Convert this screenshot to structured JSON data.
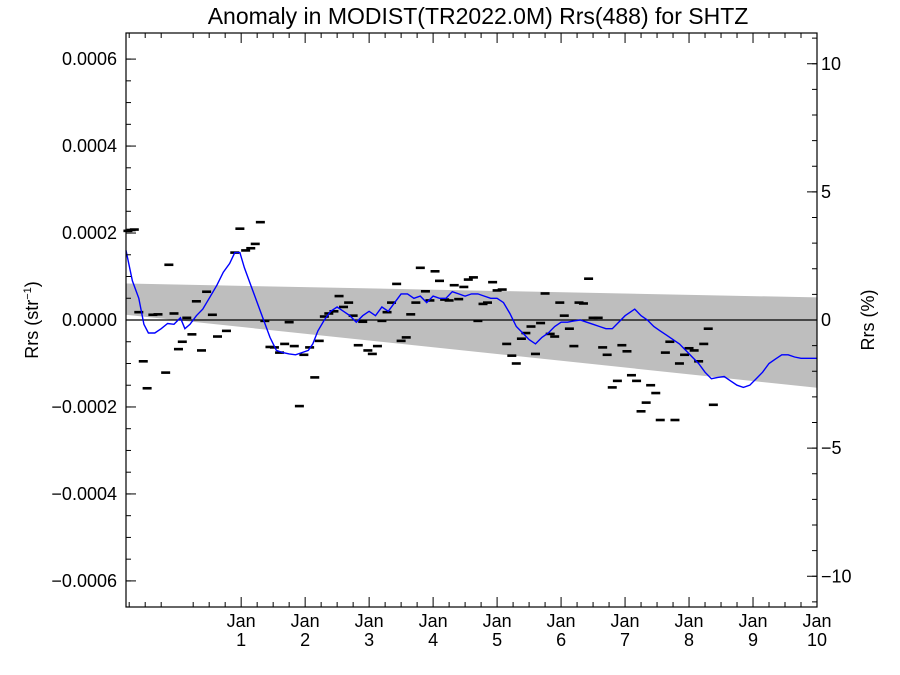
{
  "chart_data": {
    "type": "scatter",
    "title": "Anomaly in MODIST(TR2022.0M) Rrs(488) for SHTZ",
    "ylabel_left": {
      "text": "Rrs (str",
      "sup": "−1",
      "close": ")"
    },
    "ylabel_right": "Rrs (%)",
    "ylim_left": [
      -0.00066,
      0.00066
    ],
    "ylim_right": [
      -11.2,
      11.2
    ],
    "left_ticks": [
      {
        "value": 0.0006,
        "label": "0.0006"
      },
      {
        "value": 0.0004,
        "label": "0.0004"
      },
      {
        "value": 0.0002,
        "label": "0.0002"
      },
      {
        "value": 0.0,
        "label": "0.0000"
      },
      {
        "value": -0.0002,
        "label": "−0.0002"
      },
      {
        "value": -0.0004,
        "label": "−0.0004"
      },
      {
        "value": -0.0006,
        "label": "−0.0006"
      }
    ],
    "right_ticks": [
      {
        "value": 10,
        "label": "10"
      },
      {
        "value": 5,
        "label": "5"
      },
      {
        "value": 0,
        "label": "0"
      },
      {
        "value": -5,
        "label": "−5"
      },
      {
        "value": -10,
        "label": "−10"
      }
    ],
    "xlim": [
      -0.8,
      10.0
    ],
    "x_ticks": [
      {
        "value": 1,
        "top": "Jan",
        "bottom": "1"
      },
      {
        "value": 2,
        "top": "Jan",
        "bottom": "2"
      },
      {
        "value": 3,
        "top": "Jan",
        "bottom": "3"
      },
      {
        "value": 4,
        "top": "Jan",
        "bottom": "4"
      },
      {
        "value": 5,
        "top": "Jan",
        "bottom": "5"
      },
      {
        "value": 6,
        "top": "Jan",
        "bottom": "6"
      },
      {
        "value": 7,
        "top": "Jan",
        "bottom": "7"
      },
      {
        "value": 8,
        "top": "Jan",
        "bottom": "8"
      },
      {
        "value": 9,
        "top": "Jan",
        "bottom": "9"
      },
      {
        "value": 10,
        "top": "Jan",
        "bottom": "10"
      }
    ],
    "zero_line": 0,
    "band": {
      "color": "#bebebe",
      "upper": [
        [
          -0.8,
          8.4e-05
        ],
        [
          10.0,
          5.2e-05
        ]
      ],
      "lower": [
        [
          -0.8,
          1.2e-05
        ],
        [
          10.0,
          -0.000156
        ]
      ]
    },
    "points": {
      "color": "#000000",
      "marker": "dash",
      "values": [
        [
          -0.77,
          0.000205
        ],
        [
          -0.72,
          0.000207
        ],
        [
          -0.67,
          0.000208
        ],
        [
          -0.6,
          1.8e-05
        ],
        [
          -0.53,
          -9.5e-05
        ],
        [
          -0.47,
          -0.000157
        ],
        [
          -0.38,
          1.2e-05
        ],
        [
          -0.3,
          1.3e-05
        ],
        [
          -0.18,
          -0.000121
        ],
        [
          -0.13,
          0.000127
        ],
        [
          -0.05,
          1.5e-05
        ],
        [
          0.02,
          -6.7e-05
        ],
        [
          0.08,
          -5e-05
        ],
        [
          0.15,
          5e-06
        ],
        [
          0.23,
          -3.3e-05
        ],
        [
          0.3,
          4.3e-05
        ],
        [
          0.38,
          -7e-05
        ],
        [
          0.46,
          6.5e-05
        ],
        [
          0.55,
          1.2e-05
        ],
        [
          0.63,
          -3.8e-05
        ],
        [
          0.77,
          -2.5e-05
        ],
        [
          0.9,
          0.000155
        ],
        [
          0.98,
          0.00021
        ],
        [
          1.07,
          0.00016
        ],
        [
          1.15,
          0.000165
        ],
        [
          1.22,
          0.000175
        ],
        [
          1.3,
          0.000225
        ],
        [
          1.37,
          -2e-06
        ],
        [
          1.45,
          -6.2e-05
        ],
        [
          1.52,
          -6.3e-05
        ],
        [
          1.6,
          -7.5e-05
        ],
        [
          1.68,
          -5.5e-05
        ],
        [
          1.75,
          -5e-06
        ],
        [
          1.83,
          -6e-05
        ],
        [
          1.91,
          -0.000198
        ],
        [
          1.98,
          -8e-05
        ],
        [
          2.07,
          -6.3e-05
        ],
        [
          2.15,
          -0.000132
        ],
        [
          2.22,
          -4.8e-05
        ],
        [
          2.3,
          8e-06
        ],
        [
          2.37,
          1.5e-05
        ],
        [
          2.45,
          2e-05
        ],
        [
          2.53,
          5.5e-05
        ],
        [
          2.6,
          3e-05
        ],
        [
          2.68,
          4e-05
        ],
        [
          2.75,
          1e-05
        ],
        [
          2.83,
          -5.8e-05
        ],
        [
          2.9,
          -4e-06
        ],
        [
          2.98,
          -7e-05
        ],
        [
          3.05,
          -7.8e-05
        ],
        [
          3.13,
          -6e-05
        ],
        [
          3.2,
          -2e-06
        ],
        [
          3.28,
          1.8e-05
        ],
        [
          3.35,
          4e-05
        ],
        [
          3.43,
          8.3e-05
        ],
        [
          3.5,
          -4.8e-05
        ],
        [
          3.58,
          -4e-05
        ],
        [
          3.65,
          1.3e-05
        ],
        [
          3.73,
          4e-05
        ],
        [
          3.8,
          0.00012
        ],
        [
          3.88,
          6.6e-05
        ],
        [
          3.95,
          4.5e-05
        ],
        [
          4.03,
          0.000112
        ],
        [
          4.1,
          9e-05
        ],
        [
          4.18,
          4.7e-05
        ],
        [
          4.25,
          4.5e-05
        ],
        [
          4.33,
          8e-05
        ],
        [
          4.4,
          4.8e-05
        ],
        [
          4.48,
          7.6e-05
        ],
        [
          4.55,
          9.3e-05
        ],
        [
          4.63,
          9.8e-05
        ],
        [
          4.7,
          -2e-06
        ],
        [
          4.78,
          3.7e-05
        ],
        [
          4.85,
          4e-05
        ],
        [
          4.93,
          8.7e-05
        ],
        [
          5.0,
          6.8e-05
        ],
        [
          5.08,
          7e-05
        ],
        [
          5.15,
          -5.5e-05
        ],
        [
          5.23,
          -8.2e-05
        ],
        [
          5.3,
          -0.0001
        ],
        [
          5.38,
          -4.3e-05
        ],
        [
          5.45,
          -3e-05
        ],
        [
          5.53,
          -1.5e-05
        ],
        [
          5.6,
          -7.8e-05
        ],
        [
          5.68,
          -7e-06
        ],
        [
          5.75,
          6.1e-05
        ],
        [
          5.83,
          -3.2e-05
        ],
        [
          5.9,
          -3.8e-05
        ],
        [
          5.98,
          4e-05
        ],
        [
          6.05,
          1e-05
        ],
        [
          6.13,
          -2e-05
        ],
        [
          6.2,
          -6e-05
        ],
        [
          6.28,
          4e-05
        ],
        [
          6.35,
          3.8e-05
        ],
        [
          6.43,
          9.5e-05
        ],
        [
          6.5,
          5e-06
        ],
        [
          6.58,
          5e-06
        ],
        [
          6.65,
          -6.3e-05
        ],
        [
          6.72,
          -8e-05
        ],
        [
          6.8,
          -0.000155
        ],
        [
          6.88,
          -0.00014
        ],
        [
          6.95,
          -5.8e-05
        ],
        [
          7.03,
          -7.2e-05
        ],
        [
          7.1,
          -0.000127
        ],
        [
          7.18,
          -0.00014
        ],
        [
          7.25,
          -0.00021
        ],
        [
          7.33,
          -0.00019
        ],
        [
          7.4,
          -0.00015
        ],
        [
          7.48,
          -0.000168
        ],
        [
          7.55,
          -0.00023
        ],
        [
          7.63,
          -7.5e-05
        ],
        [
          7.7,
          -5e-05
        ],
        [
          7.78,
          -0.00023
        ],
        [
          7.85,
          -0.0001
        ],
        [
          7.93,
          -8e-05
        ],
        [
          8.0,
          -6.5e-05
        ],
        [
          8.08,
          -7e-05
        ],
        [
          8.15,
          -9.5e-05
        ],
        [
          8.23,
          -5.5e-05
        ],
        [
          8.3,
          -2e-05
        ],
        [
          8.38,
          -0.000195
        ]
      ]
    },
    "line": {
      "color": "#0000ff",
      "values": [
        [
          -0.8,
          0.00016
        ],
        [
          -0.7,
          9e-05
        ],
        [
          -0.6,
          5e-05
        ],
        [
          -0.52,
          -1e-05
        ],
        [
          -0.45,
          -3e-05
        ],
        [
          -0.35,
          -3e-05
        ],
        [
          -0.25,
          -2e-05
        ],
        [
          -0.15,
          -8e-06
        ],
        [
          -0.05,
          -1e-05
        ],
        [
          0.05,
          5e-06
        ],
        [
          0.12,
          -2e-05
        ],
        [
          0.2,
          -1e-05
        ],
        [
          0.3,
          1e-05
        ],
        [
          0.4,
          2.5e-05
        ],
        [
          0.5,
          5e-05
        ],
        [
          0.62,
          8e-05
        ],
        [
          0.72,
          0.00011
        ],
        [
          0.82,
          0.00013
        ],
        [
          0.9,
          0.000155
        ],
        [
          0.98,
          0.000155
        ],
        [
          1.05,
          0.00012
        ],
        [
          1.15,
          8e-05
        ],
        [
          1.25,
          4e-05
        ],
        [
          1.35,
          0.0
        ],
        [
          1.45,
          -4e-05
        ],
        [
          1.55,
          -7e-05
        ],
        [
          1.65,
          -7.5e-05
        ],
        [
          1.75,
          -7.8e-05
        ],
        [
          1.85,
          -8e-05
        ],
        [
          1.95,
          -7.5e-05
        ],
        [
          2.05,
          -7e-05
        ],
        [
          2.12,
          -5.5e-05
        ],
        [
          2.2,
          -2.5e-05
        ],
        [
          2.3,
          0.0
        ],
        [
          2.4,
          2e-05
        ],
        [
          2.5,
          3e-05
        ],
        [
          2.6,
          2e-05
        ],
        [
          2.7,
          1e-05
        ],
        [
          2.8,
          -5e-06
        ],
        [
          2.9,
          1e-05
        ],
        [
          3.0,
          2e-05
        ],
        [
          3.1,
          1e-05
        ],
        [
          3.2,
          3e-05
        ],
        [
          3.3,
          2e-05
        ],
        [
          3.4,
          4e-05
        ],
        [
          3.5,
          6e-05
        ],
        [
          3.6,
          6e-05
        ],
        [
          3.7,
          5e-05
        ],
        [
          3.8,
          5.5e-05
        ],
        [
          3.9,
          4e-05
        ],
        [
          4.0,
          5.5e-05
        ],
        [
          4.1,
          5e-05
        ],
        [
          4.2,
          5e-05
        ],
        [
          4.3,
          6.5e-05
        ],
        [
          4.4,
          6e-05
        ],
        [
          4.5,
          5.5e-05
        ],
        [
          4.6,
          6e-05
        ],
        [
          4.7,
          6e-05
        ],
        [
          4.8,
          5.5e-05
        ],
        [
          4.9,
          5e-05
        ],
        [
          5.0,
          5e-05
        ],
        [
          5.1,
          4e-05
        ],
        [
          5.2,
          1.5e-05
        ],
        [
          5.3,
          -1.5e-05
        ],
        [
          5.4,
          -3e-05
        ],
        [
          5.5,
          -4.5e-05
        ],
        [
          5.6,
          -5.5e-05
        ],
        [
          5.7,
          -4e-05
        ],
        [
          5.8,
          -3e-05
        ],
        [
          5.9,
          -1.5e-05
        ],
        [
          6.0,
          -5e-06
        ],
        [
          6.1,
          -5e-06
        ],
        [
          6.2,
          -2e-06
        ],
        [
          6.3,
          0.0
        ],
        [
          6.4,
          -5e-06
        ],
        [
          6.5,
          -1e-05
        ],
        [
          6.6,
          -1.5e-05
        ],
        [
          6.7,
          -2e-05
        ],
        [
          6.8,
          -2e-05
        ],
        [
          6.9,
          -5e-06
        ],
        [
          7.0,
          1e-05
        ],
        [
          7.1,
          2e-05
        ],
        [
          7.15,
          2.5e-05
        ],
        [
          7.25,
          1e-05
        ],
        [
          7.35,
          0.0
        ],
        [
          7.45,
          -1.5e-05
        ],
        [
          7.55,
          -2.5e-05
        ],
        [
          7.65,
          -3.5e-05
        ],
        [
          7.75,
          -4.5e-05
        ],
        [
          7.85,
          -5.5e-05
        ],
        [
          7.95,
          -7e-05
        ],
        [
          8.05,
          -8.5e-05
        ],
        [
          8.15,
          -0.0001
        ],
        [
          8.25,
          -0.00012
        ],
        [
          8.35,
          -0.000135
        ],
        [
          8.45,
          -0.000132
        ],
        [
          8.55,
          -0.00013
        ],
        [
          8.65,
          -0.00014
        ],
        [
          8.75,
          -0.00015
        ],
        [
          8.85,
          -0.000155
        ],
        [
          8.95,
          -0.00015
        ],
        [
          9.05,
          -0.000135
        ],
        [
          9.15,
          -0.00012
        ],
        [
          9.25,
          -0.0001
        ],
        [
          9.35,
          -9e-05
        ],
        [
          9.45,
          -8e-05
        ],
        [
          9.55,
          -8e-05
        ],
        [
          9.65,
          -8.5e-05
        ],
        [
          9.75,
          -8.8e-05
        ],
        [
          9.85,
          -8.8e-05
        ],
        [
          10.0,
          -8.8e-05
        ]
      ]
    }
  }
}
